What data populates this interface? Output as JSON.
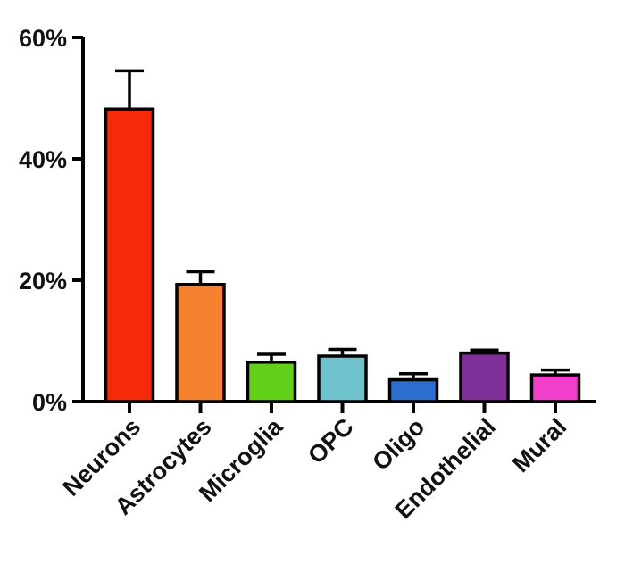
{
  "chart_data": {
    "type": "bar",
    "title": "",
    "xlabel": "",
    "ylabel": "",
    "ylim": [
      0,
      60
    ],
    "yticks": [
      0,
      20,
      40,
      60
    ],
    "ytick_labels": [
      "0%",
      "20%",
      "40%",
      "60%"
    ],
    "categories": [
      "Neurons",
      "Astrocytes",
      "Microglia",
      "OPC",
      "Oligo",
      "Endothelial",
      "Mural"
    ],
    "values": [
      48.2,
      19.3,
      6.5,
      7.5,
      3.6,
      8.0,
      4.4
    ],
    "errors": [
      6.3,
      2.1,
      1.3,
      1.1,
      1.0,
      0.5,
      0.8
    ],
    "colors": [
      "#f52a0a",
      "#f5822e",
      "#62d018",
      "#6ec2cc",
      "#2c6fcf",
      "#7e2f98",
      "#f23fcb"
    ],
    "grid": false,
    "legend": "none"
  }
}
